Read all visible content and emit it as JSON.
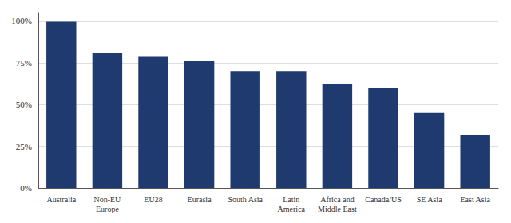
{
  "chart_data": {
    "type": "bar",
    "categories": [
      "Australia",
      "Non-EU\nEurope",
      "EU28",
      "Eurasia",
      "South Asia",
      "Latin\nAmerica",
      "Africa and\nMiddle East",
      "Canada/US",
      "SE Asia",
      "East Asia"
    ],
    "values": [
      100,
      81,
      79,
      76,
      70,
      70,
      62,
      60,
      45,
      32
    ],
    "color": "#1e3a6e",
    "ylim": [
      0,
      105
    ],
    "yticks": [
      {
        "value": 0,
        "label": "0%"
      },
      {
        "value": 25,
        "label": "25%"
      },
      {
        "value": 50,
        "label": "50%"
      },
      {
        "value": 75,
        "label": "75%"
      },
      {
        "value": 100,
        "label": "100%"
      }
    ],
    "grid": true
  }
}
